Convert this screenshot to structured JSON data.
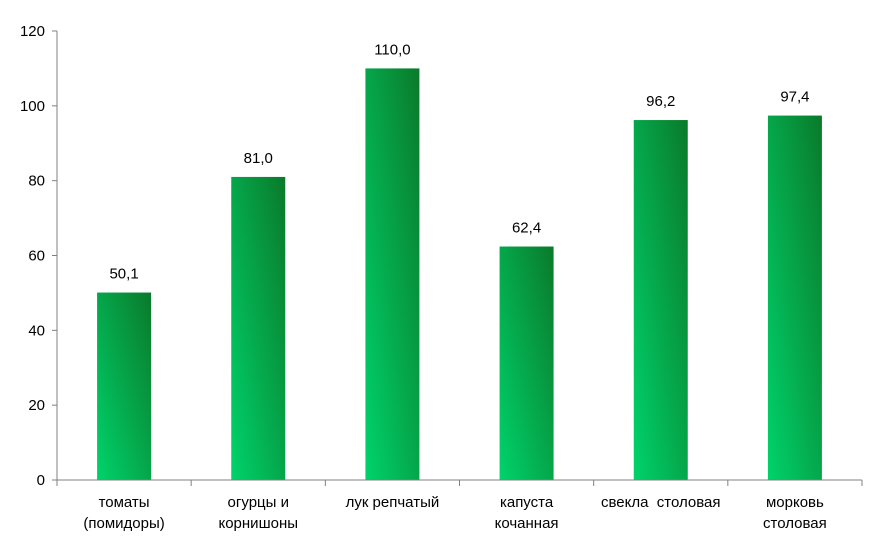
{
  "chart_data": {
    "type": "bar",
    "categories": [
      [
        "томаты",
        "(помидоры)"
      ],
      [
        "огурцы и",
        "корнишоны"
      ],
      [
        "лук репчатый"
      ],
      [
        "капуста",
        "кочанная"
      ],
      [
        "свекла  столовая"
      ],
      [
        "морковь",
        "столовая"
      ]
    ],
    "values": [
      50.1,
      81.0,
      110.0,
      62.4,
      96.2,
      97.4
    ],
    "data_labels": [
      "50,1",
      "81,0",
      "110,0",
      "62,4",
      "96,2",
      "97,4"
    ],
    "y_ticks": [
      "0",
      "20",
      "40",
      "60",
      "80",
      "100",
      "120"
    ],
    "ylim": [
      0,
      120
    ],
    "grid": false,
    "legend": "none",
    "colors": {
      "bar_light": "#00d36b",
      "bar_dark": "#0a7a2a",
      "axis": "#808080",
      "text": "#000000"
    }
  }
}
